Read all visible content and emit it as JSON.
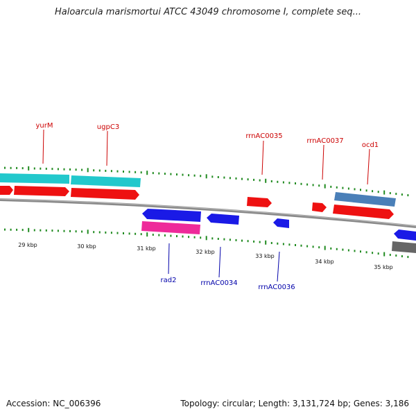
{
  "title": "Haloarcula marismortui ATCC 43049 chromosome I, complete seq...",
  "footer": {
    "accession": "Accession: NC_006396",
    "summary": "Topology: circular; Length: 3,131,724 bp; Genes: 3,186"
  },
  "colors": {
    "forward_gene": "#ee1111",
    "reverse_gene": "#1a1ae6",
    "rna": "#22c8cc",
    "pink": "#ee2a9a",
    "steel": "#4a7fb8",
    "gray": "#666666",
    "backbone": "#8a8a8a",
    "tick": "#1f8a1f",
    "label_forward": "#cc0000",
    "label_reverse": "#0000aa"
  },
  "scale_labels": [
    "29 kbp",
    "30 kbp",
    "31 kbp",
    "32 kbp",
    "33 kbp",
    "34 kbp",
    "35 kbp"
  ],
  "top_labels": [
    "yurM",
    "ugpC3",
    "rrnAC0035",
    "rrnAC0037",
    "ocd1"
  ],
  "bottom_labels": [
    "rad2",
    "rrnAC0034",
    "rrnAC0036"
  ]
}
